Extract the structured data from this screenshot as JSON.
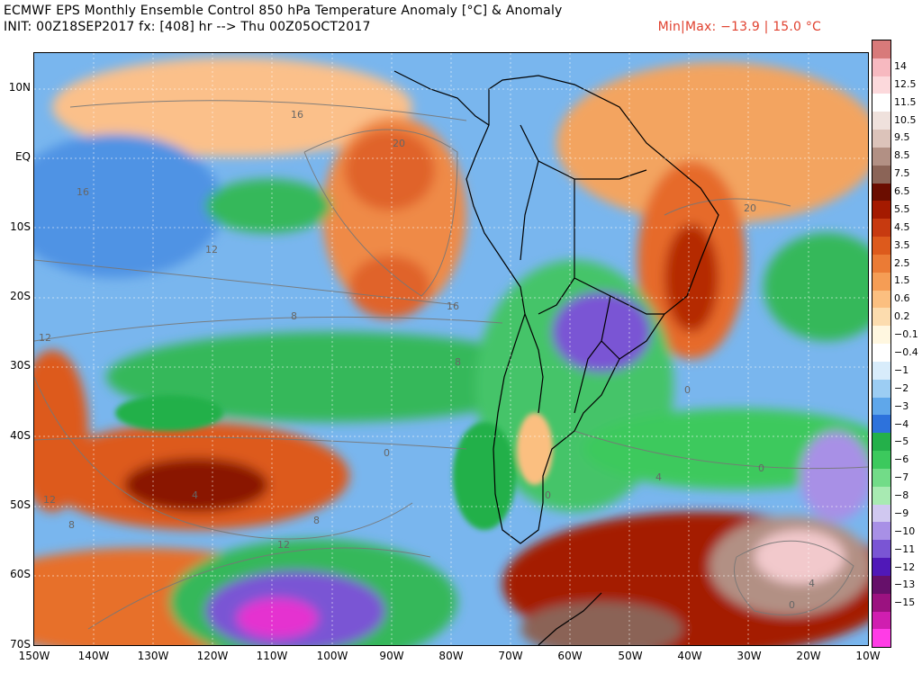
{
  "header": {
    "title_line1": "ECMWF EPS Monthly Ensemble Control 850 hPa Temperature Anomaly [°C] & Anomaly",
    "title_line2": "INIT: 00Z18SEP2017 fx: [408] hr --> Thu 00Z05OCT2017",
    "minmax": "Min|Max: −13.9 | 15.0 °C"
  },
  "map": {
    "lat_labels": [
      "10N",
      "EQ",
      "10S",
      "20S",
      "30S",
      "40S",
      "50S",
      "60S",
      "70S"
    ],
    "lon_labels": [
      "150W",
      "140W",
      "130W",
      "120W",
      "110W",
      "100W",
      "90W",
      "80W",
      "70W",
      "60W",
      "50W",
      "40W",
      "30W",
      "20W",
      "10W"
    ],
    "contour_labels": [
      "16",
      "20",
      "16",
      "12",
      "12",
      "16",
      "8",
      "8",
      "12",
      "8",
      "4",
      "0",
      "0",
      "4",
      "8",
      "12",
      "0",
      "0",
      "4",
      "0",
      "20"
    ]
  },
  "colorbar": {
    "labels": [
      "14",
      "12.5",
      "11.5",
      "10.5",
      "9.5",
      "8.5",
      "7.5",
      "6.5",
      "5.5",
      "4.5",
      "3.5",
      "2.5",
      "1.5",
      "0.6",
      "0.2",
      "−0.1",
      "−0.4",
      "−1",
      "−2",
      "−3",
      "−4",
      "−5",
      "−6",
      "−7",
      "−8",
      "−9",
      "−10",
      "−11",
      "−12",
      "−13",
      "−15"
    ],
    "colors": [
      "#d87a7a",
      "#f7b9c0",
      "#fcd9dc",
      "#ffffff",
      "#efe1dc",
      "#dcc3ba",
      "#b29084",
      "#8b6457",
      "#6b0d00",
      "#a41a00",
      "#c73a10",
      "#dd5a1c",
      "#eb7b35",
      "#f59d55",
      "#fbbf80",
      "#fcdcae",
      "#fff7e0",
      "#ffffff",
      "#d8ecfb",
      "#9ccdf3",
      "#5fa7ea",
      "#2d72dc",
      "#24b04a",
      "#3cc95d",
      "#72dc88",
      "#a8eab2",
      "#d0c8f0",
      "#a890e6",
      "#7a55d4",
      "#5018b8",
      "#66106a",
      "#9b1280",
      "#d01eb0",
      "#ff3ce6"
    ]
  }
}
